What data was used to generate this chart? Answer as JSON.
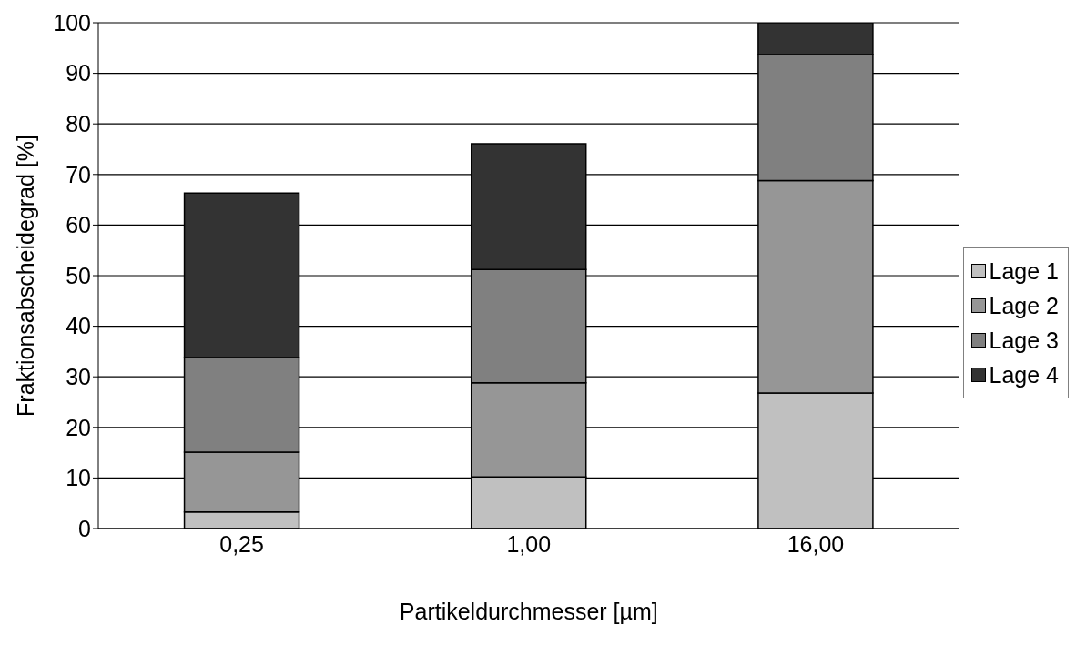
{
  "chart_data": {
    "type": "bar",
    "stacked": true,
    "xlabel": "Partikeldurchmesser [µm]",
    "ylabel": "Fraktionsabscheidegrad  [%]",
    "categories": [
      "0,25",
      "1,00",
      "16,00"
    ],
    "series": [
      {
        "name": "Lage 1",
        "color": "#c0c0c0",
        "values": [
          3.3,
          10.2,
          26.8
        ]
      },
      {
        "name": "Lage 2",
        "color": "#969696",
        "values": [
          11.8,
          18.6,
          42.0
        ]
      },
      {
        "name": "Lage 3",
        "color": "#808080",
        "values": [
          18.7,
          22.4,
          24.9
        ]
      },
      {
        "name": "Lage 4",
        "color": "#333333",
        "values": [
          32.5,
          24.9,
          6.3
        ]
      }
    ],
    "ylim": [
      0,
      100
    ],
    "yticks": [
      0,
      10,
      20,
      30,
      40,
      50,
      60,
      70,
      80,
      90,
      100
    ],
    "grid": "y",
    "legend": "right"
  }
}
